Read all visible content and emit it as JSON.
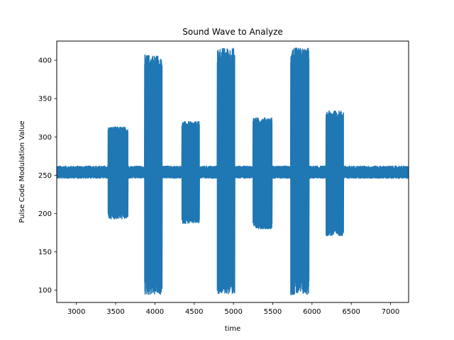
{
  "chart_data": {
    "type": "line",
    "title": "Sound Wave to Analyze",
    "xlabel": "time",
    "ylabel": "Pulse Code Modulation Value",
    "xlim": [
      2750,
      7230
    ],
    "ylim": [
      84,
      425
    ],
    "xticks": [
      3000,
      3500,
      4000,
      4500,
      5000,
      5500,
      6000,
      6500,
      7000
    ],
    "yticks": [
      100,
      150,
      200,
      250,
      300,
      350,
      400
    ],
    "grid": false,
    "legend": "none",
    "series_color": "#1f77b4",
    "baseline": {
      "center": 253,
      "min": 246,
      "max": 262
    },
    "bursts": [
      {
        "start": 3405,
        "end": 3655,
        "min": 193,
        "max": 313
      },
      {
        "start": 3870,
        "end": 4090,
        "min": 94,
        "max": 407
      },
      {
        "start": 4345,
        "end": 4565,
        "min": 187,
        "max": 320
      },
      {
        "start": 4795,
        "end": 5015,
        "min": 95,
        "max": 416
      },
      {
        "start": 5250,
        "end": 5490,
        "min": 180,
        "max": 325
      },
      {
        "start": 5730,
        "end": 5960,
        "min": 94,
        "max": 416
      },
      {
        "start": 6180,
        "end": 6400,
        "min": 171,
        "max": 334
      }
    ]
  }
}
